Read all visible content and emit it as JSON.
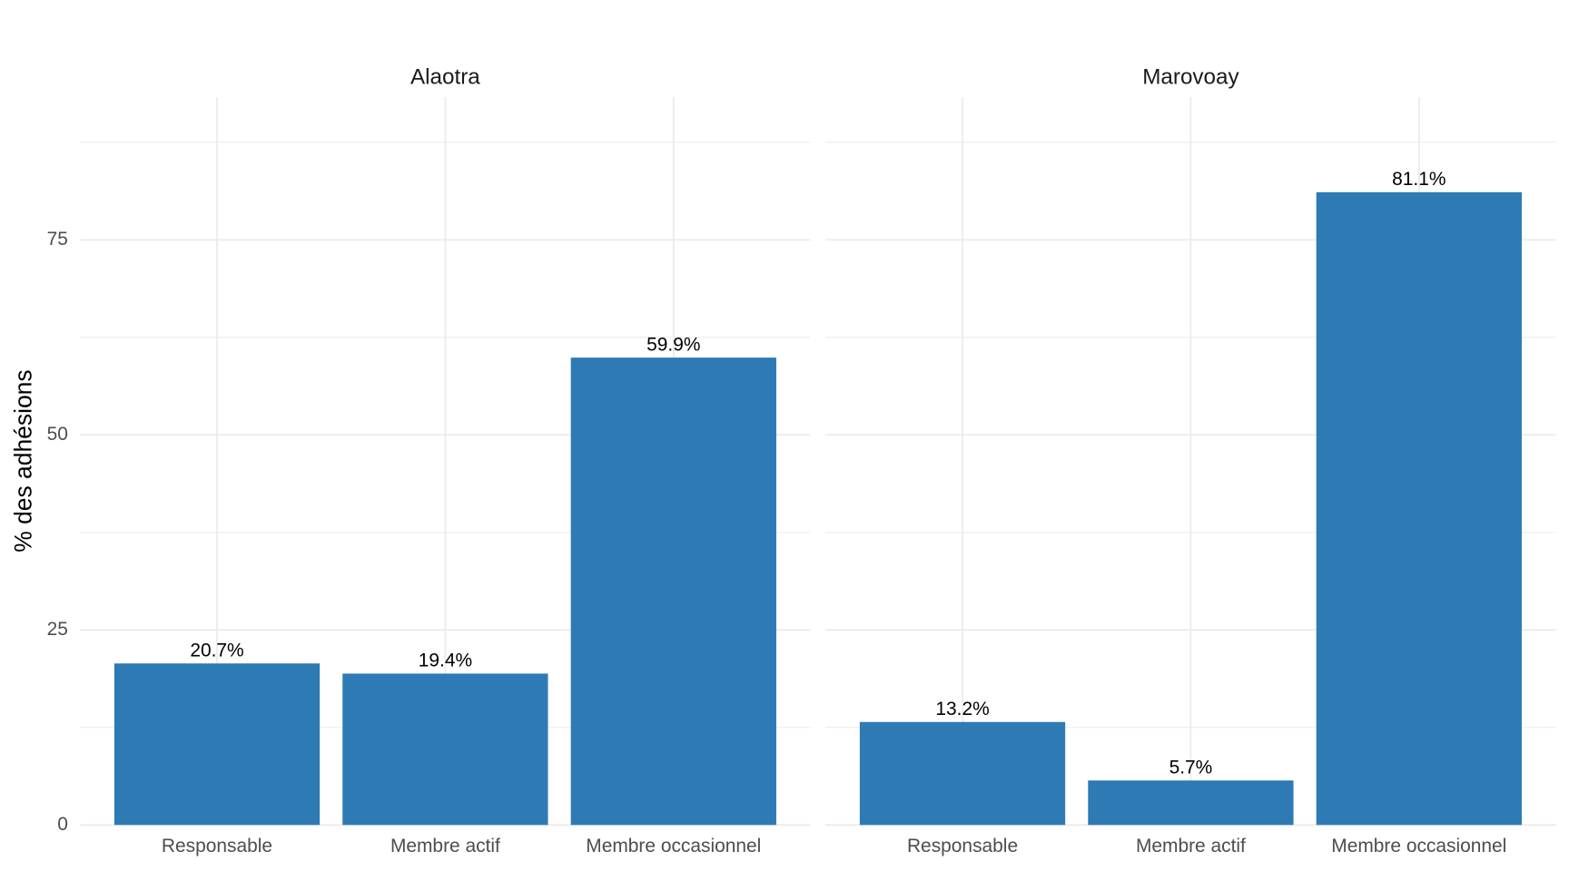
{
  "chart_data": [
    {
      "type": "bar",
      "title": "Alaotra",
      "ylabel": "% des adhésions",
      "categories": [
        "Responsable",
        "Membre actif",
        "Membre occasionnel"
      ],
      "values": [
        20.7,
        19.4,
        59.9
      ],
      "value_labels": [
        "20.7%",
        "19.4%",
        "59.9%"
      ],
      "color": "#2e7ab5",
      "ylim": [
        0,
        93.3
      ],
      "yticks": [
        0,
        25,
        50,
        75
      ],
      "grid": true
    },
    {
      "type": "bar",
      "title": "Marovoay",
      "categories": [
        "Responsable",
        "Membre actif",
        "Membre occasionnel"
      ],
      "values": [
        13.2,
        5.7,
        81.1
      ],
      "value_labels": [
        "13.2%",
        "5.7%",
        "81.1%"
      ],
      "color": "#2e7ab5",
      "ylim": [
        0,
        93.3
      ],
      "yticks": [
        0,
        25,
        50,
        75
      ],
      "grid": true
    }
  ]
}
